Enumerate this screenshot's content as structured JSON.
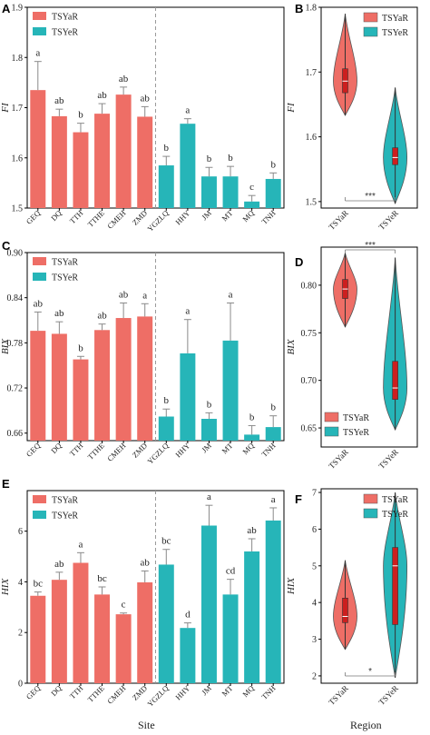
{
  "colors": {
    "tsyar": "#ee6e66",
    "tsyer": "#26b5b8",
    "axis": "#000000",
    "dash": "#9a9a9a",
    "err": "#8a8a8a",
    "box": "#cc1f1f"
  },
  "figure": {
    "xlabel_left": "Site",
    "xlabel_right": "Region"
  },
  "chart_data": [
    {
      "panel": "A",
      "type": "bar",
      "ylabel": "FI",
      "ylim": [
        1.5,
        1.9
      ],
      "yticks": [
        "1.5",
        "1.6",
        "1.7",
        "1.8",
        "1.9"
      ],
      "categories": [
        "GEQ",
        "DQ",
        "TTH",
        "TTHE",
        "CMEH",
        "ZMD",
        "YGZLQ",
        "HHY",
        "JM",
        "MT",
        "MQ",
        "TNH"
      ],
      "values": [
        1.735,
        1.683,
        1.651,
        1.688,
        1.726,
        1.682,
        1.585,
        1.668,
        1.563,
        1.563,
        1.513,
        1.558
      ],
      "errors": [
        0.057,
        0.014,
        0.018,
        0.02,
        0.015,
        0.02,
        0.018,
        0.01,
        0.018,
        0.02,
        0.012,
        0.012
      ],
      "letters": [
        "a",
        "ab",
        "b",
        "ab",
        "ab",
        "ab",
        "b",
        "a",
        "b",
        "b",
        "c",
        "b"
      ],
      "group_split": 6,
      "legend": [
        "TSYaR",
        "TSYeR"
      ]
    },
    {
      "panel": "B",
      "type": "violin",
      "ylabel": "FI",
      "ylim": [
        1.49,
        1.8
      ],
      "yticks": [
        "1.5",
        "1.6",
        "1.7",
        "1.8"
      ],
      "categories": [
        "TSYaR",
        "TSYeR"
      ],
      "violins": [
        {
          "min": 1.633,
          "max": 1.79,
          "q1": 1.668,
          "median": 1.686,
          "q3": 1.705
        },
        {
          "min": 1.497,
          "max": 1.676,
          "q1": 1.557,
          "median": 1.568,
          "q3": 1.583
        }
      ],
      "significance": "***",
      "legend": [
        "TSYaR",
        "TSYeR"
      ]
    },
    {
      "panel": "C",
      "type": "bar",
      "ylabel": "BIX",
      "ylim": [
        0.65,
        0.9
      ],
      "yticks": [
        "0.66",
        "0.72",
        "0.78",
        "0.84",
        "0.90"
      ],
      "categories": [
        "GEQ",
        "DQ",
        "TTH",
        "TTHE",
        "CMEH",
        "ZMD",
        "YGZLQ",
        "HHY",
        "JM",
        "MT",
        "MQ",
        "TNH"
      ],
      "values": [
        0.796,
        0.792,
        0.758,
        0.797,
        0.813,
        0.815,
        0.682,
        0.766,
        0.679,
        0.783,
        0.658,
        0.668
      ],
      "errors": [
        0.025,
        0.016,
        0.004,
        0.008,
        0.02,
        0.017,
        0.01,
        0.045,
        0.008,
        0.05,
        0.012,
        0.015
      ],
      "letters": [
        "ab",
        "ab",
        "b",
        "ab",
        "ab",
        "a",
        "b",
        "a",
        "b",
        "a",
        "b",
        "b"
      ],
      "group_split": 6,
      "legend": [
        "TSYaR",
        "TSYeR"
      ]
    },
    {
      "panel": "D",
      "type": "violin",
      "ylabel": "BIX",
      "ylim": [
        0.63,
        0.84
      ],
      "yticks": [
        "0.65",
        "0.70",
        "0.75",
        "0.80"
      ],
      "categories": [
        "TSYaR",
        "TSYeR"
      ],
      "violins": [
        {
          "min": 0.756,
          "max": 0.834,
          "q1": 0.786,
          "median": 0.796,
          "q3": 0.806
        },
        {
          "min": 0.648,
          "max": 0.829,
          "q1": 0.68,
          "median": 0.692,
          "q3": 0.72
        }
      ],
      "significance": "***",
      "legend": [
        "TSYaR",
        "TSYeR"
      ]
    },
    {
      "panel": "E",
      "type": "bar",
      "ylabel": "HIX",
      "ylim": [
        0,
        7.6
      ],
      "yticks": [
        "0",
        "2",
        "4",
        "6"
      ],
      "categories": [
        "GEQ",
        "DQ",
        "TTH",
        "TTHE",
        "CMEH",
        "ZMD",
        "YGZLQ",
        "HHY",
        "JM",
        "MT",
        "MQ",
        "TNH"
      ],
      "values": [
        3.45,
        4.08,
        4.75,
        3.5,
        2.72,
        3.98,
        4.68,
        2.18,
        6.22,
        3.5,
        5.2,
        6.42
      ],
      "errors": [
        0.15,
        0.3,
        0.4,
        0.3,
        0.05,
        0.45,
        0.6,
        0.2,
        0.8,
        0.6,
        0.5,
        0.5
      ],
      "letters": [
        "bc",
        "ab",
        "a",
        "bc",
        "c",
        "ab",
        "bc",
        "d",
        "a",
        "cd",
        "ab",
        "a"
      ],
      "group_split": 6,
      "legend": [
        "TSYaR",
        "TSYeR"
      ]
    },
    {
      "panel": "F",
      "type": "violin",
      "ylabel": "HIX",
      "ylim": [
        1.8,
        7.1
      ],
      "yticks": [
        "2",
        "3",
        "4",
        "5",
        "6",
        "7"
      ],
      "categories": [
        "TSYaR",
        "TSYeR"
      ],
      "violins": [
        {
          "min": 2.72,
          "max": 5.15,
          "q1": 3.45,
          "median": 3.62,
          "q3": 4.12
        },
        {
          "min": 1.95,
          "max": 7.0,
          "q1": 3.4,
          "median": 5.0,
          "q3": 5.5
        }
      ],
      "significance": "*",
      "legend": [
        "TSYaR",
        "TSYeR"
      ]
    }
  ]
}
